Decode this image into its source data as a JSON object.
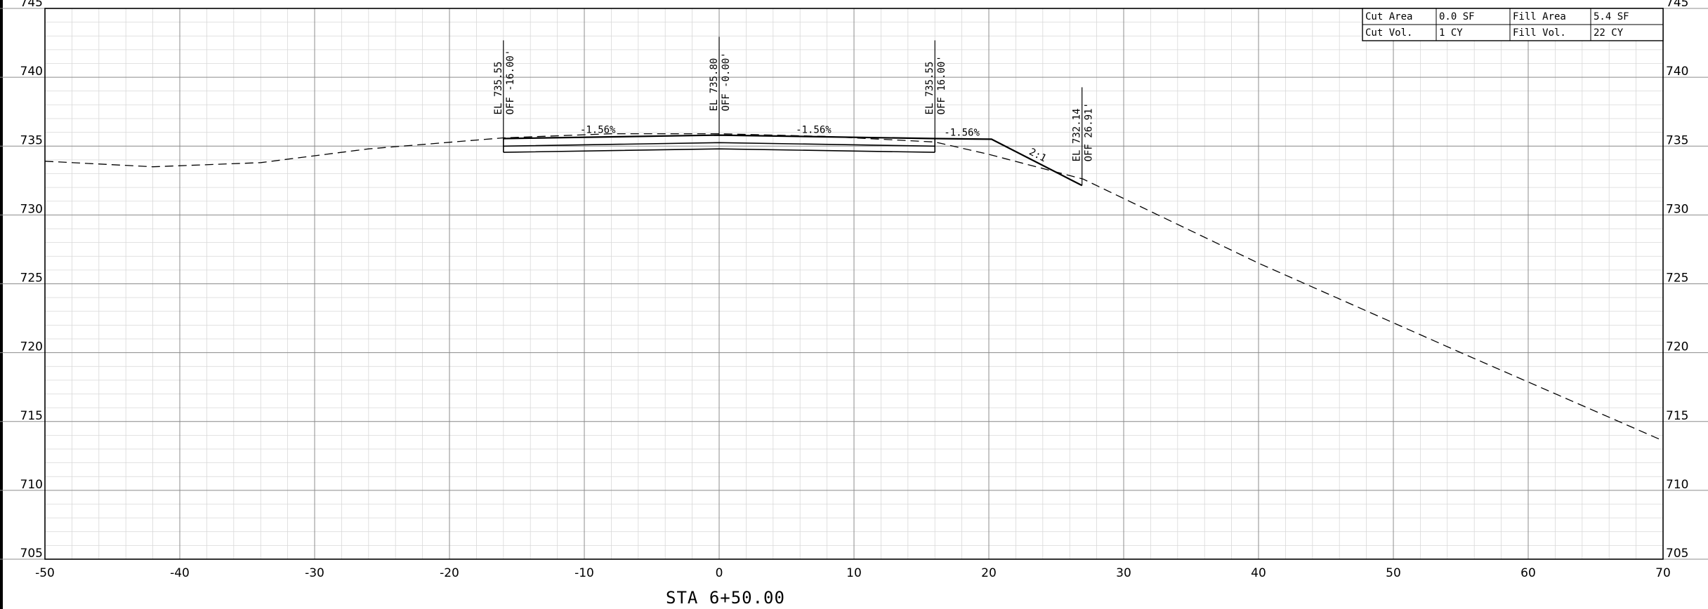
{
  "chart_data": {
    "type": "line",
    "title": "STA 6+50.00",
    "xlim": [
      -50,
      70
    ],
    "ylim": [
      705,
      745
    ],
    "x_ticks": [
      -50,
      -40,
      -30,
      -20,
      -10,
      0,
      10,
      20,
      30,
      40,
      50,
      60,
      70
    ],
    "y_ticks": [
      705,
      710,
      715,
      720,
      725,
      730,
      735,
      740,
      745
    ],
    "x_tick_labels": [
      "-50",
      "-40",
      "-30",
      "-20",
      "-10",
      "0",
      "10",
      "20",
      "30",
      "40",
      "50",
      "60",
      "70"
    ],
    "y_tick_labels": [
      "705",
      "710",
      "715",
      "720",
      "725",
      "730",
      "735",
      "740",
      "745"
    ],
    "grid": true,
    "series": [
      {
        "style": "dashed",
        "x": [
          -50,
          -42,
          -34,
          -26,
          -16,
          -8,
          0,
          8,
          16,
          20,
          27,
          40,
          55,
          70
        ],
        "y": [
          733.9,
          733.5,
          733.8,
          734.8,
          735.6,
          735.9,
          735.9,
          735.7,
          735.3,
          734.4,
          732.6,
          726.5,
          720.0,
          713.6
        ]
      },
      {
        "style": "solid",
        "x": [
          -16,
          0,
          16,
          20.2,
          26.91
        ],
        "y": [
          735.55,
          735.8,
          735.55,
          735.5,
          732.14
        ]
      },
      {
        "style": "solid",
        "x": [
          -16,
          0,
          16
        ],
        "y": [
          735.0,
          735.25,
          735.0
        ]
      },
      {
        "style": "solid",
        "x": [
          -16,
          0,
          16
        ],
        "y": [
          734.55,
          734.8,
          734.55
        ]
      }
    ],
    "point_annotations": [
      {
        "x": -16,
        "y": 735.55,
        "el": "EL 735.55",
        "off": "OFF -16.00'"
      },
      {
        "x": 0,
        "y": 735.8,
        "el": "EL 735.80",
        "off": "OFF -0.00'"
      },
      {
        "x": 16,
        "y": 735.55,
        "el": "EL 735.55",
        "off": "OFF 16.00'"
      },
      {
        "x": 26.91,
        "y": 732.14,
        "el": "EL 732.14",
        "off": "OFF 26.91'"
      }
    ],
    "grade_labels": [
      {
        "x": -9,
        "y": 735.9,
        "text": "-1.56%"
      },
      {
        "x": 7,
        "y": 735.9,
        "text": "-1.56%"
      },
      {
        "x": 18,
        "y": 735.7,
        "text": "-1.56%"
      },
      {
        "x": 23.5,
        "y": 734.1,
        "text": "2:1"
      }
    ],
    "quantities": [
      [
        {
          "label": "Cut Area",
          "value": "0.0 SF"
        },
        {
          "label": "Fill Area",
          "value": "5.4 SF"
        }
      ],
      [
        {
          "label": "Cut Vol.",
          "value": "1 CY"
        },
        {
          "label": "Fill Vol.",
          "value": "22 CY"
        }
      ]
    ]
  }
}
